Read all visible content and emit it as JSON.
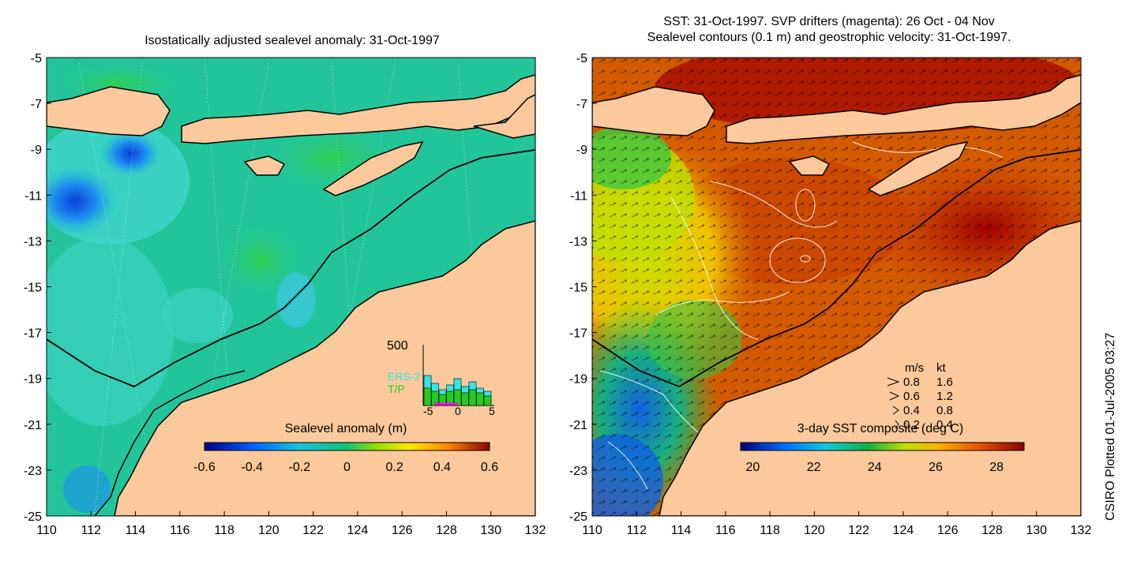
{
  "left_panel": {
    "title": "Isostatically adjusted sealevel anomaly: 31-Oct-1997",
    "colorbar": {
      "label": "Sealevel anomaly (m)",
      "ticks": [
        "-0.6",
        "-0.4",
        "-0.2",
        "0",
        "0.2",
        "0.4",
        "0.6"
      ]
    },
    "inset": {
      "y_tick": "500",
      "x_ticks": [
        "-5",
        "0",
        "5"
      ],
      "legend": [
        {
          "name": "ERS-2",
          "color": "#33e6e6"
        },
        {
          "name": "T/P",
          "color": "#22cc22"
        }
      ]
    }
  },
  "right_panel": {
    "title_line1": "SST: 31-Oct-1997. SVP drifters (magenta): 26 Oct - 04 Nov",
    "title_line2": "Sealevel contours (0.1 m) and geostrophic velocity: 31-Oct-1997.",
    "colorbar": {
      "label": "3-day SST composite (deg C)",
      "ticks": [
        "20",
        "22",
        "24",
        "26",
        "28"
      ]
    },
    "velocity_legend": {
      "header_ms": "m/s",
      "header_kt": "kt",
      "rows": [
        {
          "ms": "0.8",
          "kt": "1.6"
        },
        {
          "ms": "0.6",
          "kt": "1.2"
        },
        {
          "ms": "0.4",
          "kt": "0.8"
        },
        {
          "ms": "0.2",
          "kt": "0.4"
        }
      ]
    }
  },
  "axes": {
    "x_ticks": [
      "110",
      "112",
      "114",
      "116",
      "118",
      "120",
      "122",
      "124",
      "126",
      "128",
      "130",
      "132"
    ],
    "y_ticks": [
      "-5",
      "-7",
      "-9",
      "-11",
      "-13",
      "-15",
      "-17",
      "-19",
      "-21",
      "-23",
      "-25"
    ]
  },
  "credit": "CSIRO Plotted 01-Jul-2005 03:27",
  "colors": {
    "land": "#fbc99b",
    "sla_ocean": "#22c59a",
    "sst_warm": "#c44000"
  }
}
